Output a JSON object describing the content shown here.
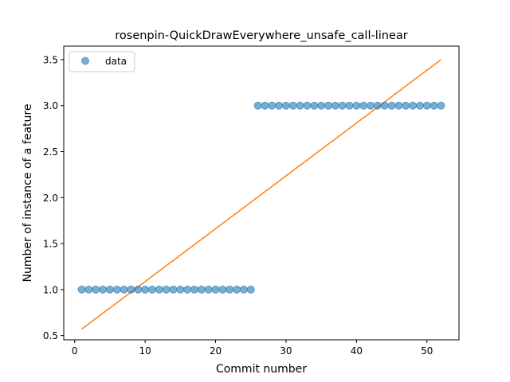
{
  "chart_data": {
    "type": "scatter",
    "title": "rosenpin-QuickDrawEverywhere_unsafe_call-linear",
    "xlabel": "Commit number",
    "ylabel": "Number of instance of a feature",
    "xlim": [
      -1.55,
      54.55
    ],
    "ylim": [
      0.4535,
      3.6465
    ],
    "x_ticks": [
      0,
      10,
      20,
      30,
      40,
      50
    ],
    "x_tick_labels": [
      "0",
      "10",
      "20",
      "30",
      "40",
      "50"
    ],
    "y_ticks": [
      0.5,
      1.0,
      1.5,
      2.0,
      2.5,
      3.0,
      3.5
    ],
    "y_tick_labels": [
      "0.5",
      "1.0",
      "1.5",
      "2.0",
      "2.5",
      "3.0",
      "3.5"
    ],
    "grid": false,
    "legend_position": "top-left",
    "series": [
      {
        "name": "data",
        "kind": "scatter",
        "color": "#1f77b4",
        "x": [
          1,
          2,
          3,
          4,
          5,
          6,
          7,
          8,
          9,
          10,
          11,
          12,
          13,
          14,
          15,
          16,
          17,
          18,
          19,
          20,
          21,
          22,
          23,
          24,
          25,
          26,
          27,
          28,
          29,
          30,
          31,
          32,
          33,
          34,
          35,
          36,
          37,
          38,
          39,
          40,
          41,
          42,
          43,
          44,
          45,
          46,
          47,
          48,
          49,
          50,
          51,
          52
        ],
        "y": [
          1,
          1,
          1,
          1,
          1,
          1,
          1,
          1,
          1,
          1,
          1,
          1,
          1,
          1,
          1,
          1,
          1,
          1,
          1,
          1,
          1,
          1,
          1,
          1,
          1,
          3,
          3,
          3,
          3,
          3,
          3,
          3,
          3,
          3,
          3,
          3,
          3,
          3,
          3,
          3,
          3,
          3,
          3,
          3,
          3,
          3,
          3,
          3,
          3,
          3,
          3,
          3
        ]
      },
      {
        "kind": "line",
        "color": "#ff7f0e",
        "x": [
          1,
          52
        ],
        "y": [
          0.57,
          3.5
        ]
      }
    ]
  }
}
